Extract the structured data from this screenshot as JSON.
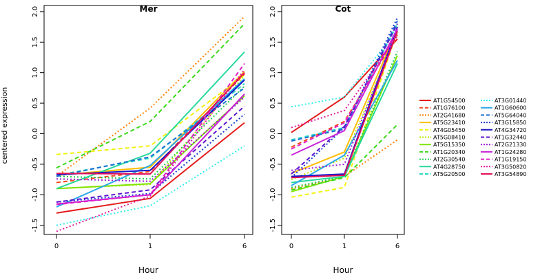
{
  "chart_data": [
    {
      "type": "line",
      "title": "Mer",
      "xlabel": "Hour",
      "ylabel": "centered expression",
      "x_ticks": [
        "0",
        "1",
        "6"
      ],
      "ylim": [
        -1.65,
        2.1
      ],
      "y_ticks": [
        "-1.5",
        "-1.0",
        "-0.5",
        "0.0",
        "0.5",
        "1.0",
        "1.5",
        "2.0"
      ],
      "grid": false,
      "series": [
        {
          "name": "AT1G54500",
          "values": [
            -1.3,
            -1.06,
            0.18
          ]
        },
        {
          "name": "AT1G76100",
          "values": [
            -0.8,
            -0.62,
            0.98
          ]
        },
        {
          "name": "AT2G41680",
          "values": [
            -0.7,
            0.42,
            1.92
          ]
        },
        {
          "name": "AT5G23410",
          "values": [
            -0.68,
            -0.55,
            1.02
          ]
        },
        {
          "name": "AT4G05450",
          "values": [
            -0.34,
            -0.2,
            0.96
          ]
        },
        {
          "name": "AT5G08410",
          "values": [
            -0.9,
            -0.83,
            0.95
          ]
        },
        {
          "name": "AT5G15350",
          "values": [
            -0.9,
            -0.82,
            0.62
          ]
        },
        {
          "name": "AT1G20340",
          "values": [
            -0.56,
            0.2,
            1.8
          ]
        },
        {
          "name": "AT2G30540",
          "values": [
            -0.7,
            -0.74,
            0.78
          ]
        },
        {
          "name": "AT4G28750",
          "values": [
            -0.9,
            -0.32,
            1.34
          ]
        },
        {
          "name": "AT5G20500",
          "values": [
            -0.68,
            -0.4,
            0.82
          ]
        },
        {
          "name": "AT3G01440",
          "values": [
            -1.5,
            -1.18,
            -0.2
          ]
        },
        {
          "name": "AT1G60600",
          "values": [
            -1.2,
            -0.52,
            0.9
          ]
        },
        {
          "name": "AT5G64040",
          "values": [
            -0.7,
            -0.38,
            0.75
          ]
        },
        {
          "name": "AT3G15850",
          "values": [
            -1.12,
            -0.98,
            0.32
          ]
        },
        {
          "name": "AT4G34720",
          "values": [
            -0.67,
            -0.6,
            0.88
          ]
        },
        {
          "name": "AT1G32440",
          "values": [
            -1.12,
            -0.92,
            0.45
          ]
        },
        {
          "name": "AT2G21330",
          "values": [
            -0.74,
            -0.78,
            0.6
          ]
        },
        {
          "name": "AT1G24280",
          "values": [
            -1.15,
            -1.0,
            0.65
          ]
        },
        {
          "name": "AT1G19150",
          "values": [
            -1.16,
            -1.0,
            1.15
          ]
        },
        {
          "name": "AT3G50820",
          "values": [
            -1.6,
            -1.02,
            1.05
          ]
        },
        {
          "name": "AT3G54890",
          "values": [
            -0.65,
            -0.66,
            1.0
          ]
        }
      ]
    },
    {
      "type": "line",
      "title": "Cot",
      "xlabel": "Hour",
      "ylabel": "",
      "x_ticks": [
        "0",
        "1",
        "6"
      ],
      "ylim": [
        -1.65,
        2.1
      ],
      "y_ticks": [
        "-1.5",
        "-1.0",
        "-0.5",
        "0.0",
        "0.5",
        "1.0",
        "1.5",
        "2.0"
      ],
      "grid": false,
      "series": [
        {
          "name": "AT1G54500",
          "values": [
            0.02,
            0.6,
            1.55
          ]
        },
        {
          "name": "AT1G76100",
          "values": [
            -0.22,
            0.2,
            1.62
          ]
        },
        {
          "name": "AT2G41680",
          "values": [
            -0.9,
            -0.7,
            -0.1
          ]
        },
        {
          "name": "AT5G23410",
          "values": [
            -0.65,
            -0.3,
            1.72
          ]
        },
        {
          "name": "AT4G05450",
          "values": [
            -1.04,
            -0.88,
            1.68
          ]
        },
        {
          "name": "AT5G08410",
          "values": [
            -0.75,
            -0.4,
            1.65
          ]
        },
        {
          "name": "AT5G15350",
          "values": [
            -0.95,
            -0.7,
            1.28
          ]
        },
        {
          "name": "AT1G20340",
          "values": [
            -0.92,
            -0.72,
            0.15
          ]
        },
        {
          "name": "AT2G30540",
          "values": [
            -0.88,
            -0.7,
            1.35
          ]
        },
        {
          "name": "AT4G28750",
          "values": [
            -0.8,
            -0.7,
            1.15
          ]
        },
        {
          "name": "AT5G20500",
          "values": [
            -0.1,
            0.1,
            1.8
          ]
        },
        {
          "name": "AT3G01440",
          "values": [
            0.44,
            0.6,
            1.7
          ]
        },
        {
          "name": "AT1G60600",
          "values": [
            -0.85,
            -0.35,
            1.2
          ]
        },
        {
          "name": "AT5G64040",
          "values": [
            -0.12,
            0.08,
            1.85
          ]
        },
        {
          "name": "AT3G15850",
          "values": [
            -0.72,
            0.1,
            1.9
          ]
        },
        {
          "name": "AT4G34720",
          "values": [
            -0.7,
            -0.66,
            1.75
          ]
        },
        {
          "name": "AT1G32440",
          "values": [
            -0.66,
            0.12,
            1.8
          ]
        },
        {
          "name": "AT2G21330",
          "values": [
            -0.6,
            -0.5,
            1.7
          ]
        },
        {
          "name": "AT1G24280",
          "values": [
            -0.35,
            0.05,
            1.72
          ]
        },
        {
          "name": "AT1G19150",
          "values": [
            -0.25,
            0.18,
            1.65
          ]
        },
        {
          "name": "AT3G50820",
          "values": [
            0.1,
            0.38,
            1.6
          ]
        },
        {
          "name": "AT3G54890",
          "values": [
            -0.72,
            -0.68,
            1.68
          ]
        }
      ]
    }
  ],
  "legend": {
    "placement": "right",
    "items": [
      {
        "name": "AT1G54500",
        "color": "#e41a1c",
        "dash": "solid"
      },
      {
        "name": "AT1G76100",
        "color": "#f04a1e",
        "dash": "dashed"
      },
      {
        "name": "AT2G41680",
        "color": "#ff7f00",
        "dash": "dotted"
      },
      {
        "name": "AT5G23410",
        "color": "#ffbe00",
        "dash": "solid"
      },
      {
        "name": "AT4G05450",
        "color": "#f2f20f",
        "dash": "dashed"
      },
      {
        "name": "AT5G08410",
        "color": "#b8e800",
        "dash": "dotted"
      },
      {
        "name": "AT5G15350",
        "color": "#80e400",
        "dash": "solid"
      },
      {
        "name": "AT1G20340",
        "color": "#3cd81a",
        "dash": "dashed"
      },
      {
        "name": "AT2G30540",
        "color": "#22cc55",
        "dash": "dotted"
      },
      {
        "name": "AT4G28750",
        "color": "#26d99a",
        "dash": "solid"
      },
      {
        "name": "AT5G20500",
        "color": "#28d6c2",
        "dash": "dashed"
      },
      {
        "name": "AT3G01440",
        "color": "#30eded",
        "dash": "dotted"
      },
      {
        "name": "AT1G60600",
        "color": "#2aa8e8",
        "dash": "solid"
      },
      {
        "name": "AT5G64040",
        "color": "#1f6fd6",
        "dash": "dashed"
      },
      {
        "name": "AT3G15850",
        "color": "#1e3fd0",
        "dash": "dotted"
      },
      {
        "name": "AT4G34720",
        "color": "#1818c8",
        "dash": "solid"
      },
      {
        "name": "AT1G32440",
        "color": "#5a14d0",
        "dash": "dashed"
      },
      {
        "name": "AT2G21330",
        "color": "#9a1ad8",
        "dash": "dotted"
      },
      {
        "name": "AT1G24280",
        "color": "#c820d8",
        "dash": "solid"
      },
      {
        "name": "AT1G19150",
        "color": "#e11fc6",
        "dash": "dashed"
      },
      {
        "name": "AT3G50820",
        "color": "#e0169a",
        "dash": "dotted"
      },
      {
        "name": "AT3G54890",
        "color": "#e0105a",
        "dash": "solid"
      }
    ]
  }
}
